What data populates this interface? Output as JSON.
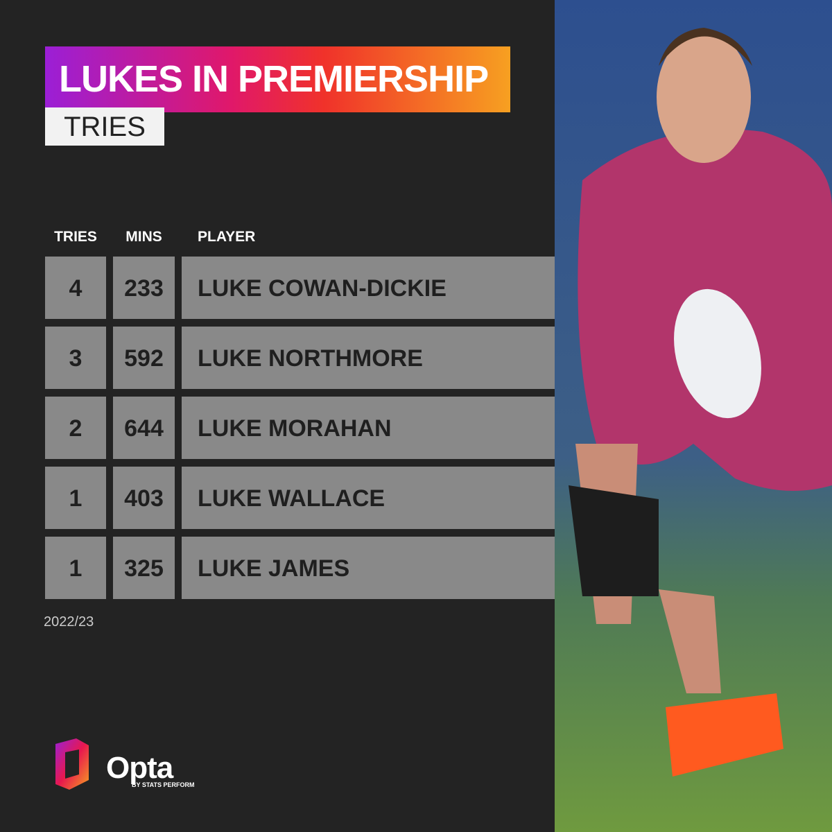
{
  "header": {
    "title": "LUKES IN PREMIERSHIP",
    "subtitle": "TRIES"
  },
  "table": {
    "columns": [
      "TRIES",
      "MINS",
      "PLAYER"
    ],
    "rows": [
      [
        4,
        233,
        "LUKE COWAN-DICKIE"
      ],
      [
        3,
        592,
        "LUKE NORTHMORE"
      ],
      [
        2,
        644,
        "LUKE MORAHAN"
      ],
      [
        1,
        403,
        "LUKE WALLACE"
      ],
      [
        1,
        325,
        "LUKE JAMES"
      ]
    ]
  },
  "footnote": "2022/23",
  "logo": {
    "name": "Opta",
    "tagline": "BY STATS PERFORM"
  }
}
